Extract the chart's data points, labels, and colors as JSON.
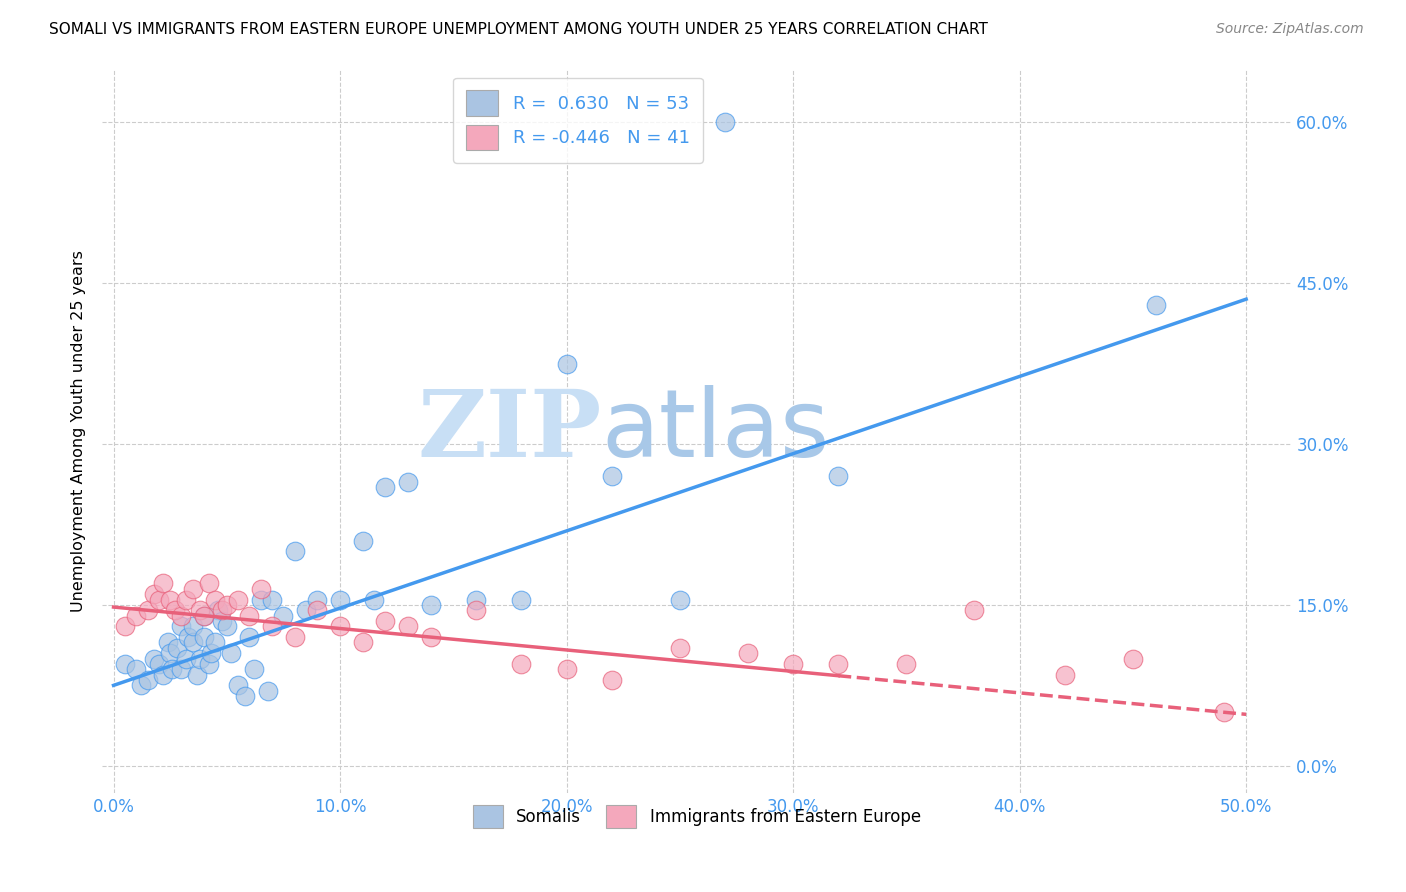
{
  "title": "SOMALI VS IMMIGRANTS FROM EASTERN EUROPE UNEMPLOYMENT AMONG YOUTH UNDER 25 YEARS CORRELATION CHART",
  "source": "Source: ZipAtlas.com",
  "ylabel": "Unemployment Among Youth under 25 years",
  "xlabel_ticks": [
    "0.0%",
    "10.0%",
    "20.0%",
    "30.0%",
    "40.0%",
    "50.0%"
  ],
  "ylabel_ticks": [
    "0.0%",
    "15.0%",
    "30.0%",
    "45.0%",
    "60.0%"
  ],
  "xlim": [
    -0.005,
    0.52
  ],
  "ylim": [
    -0.025,
    0.65
  ],
  "somali_R": 0.63,
  "somali_N": 53,
  "eastern_R": -0.446,
  "eastern_N": 41,
  "somali_color": "#aac4e2",
  "eastern_color": "#f4a8bc",
  "line_somali_color": "#4499ee",
  "line_eastern_color": "#e8607a",
  "watermark_zip": "ZIP",
  "watermark_atlas": "atlas",
  "watermark_color_zip": "#c8dff5",
  "watermark_color_atlas": "#a8c8e8",
  "legend_label_somali": "Somalis",
  "legend_label_eastern": "Immigrants from Eastern Europe",
  "somali_x": [
    0.005,
    0.01,
    0.012,
    0.015,
    0.018,
    0.02,
    0.022,
    0.024,
    0.025,
    0.026,
    0.028,
    0.03,
    0.03,
    0.032,
    0.033,
    0.035,
    0.035,
    0.037,
    0.038,
    0.04,
    0.04,
    0.042,
    0.043,
    0.045,
    0.046,
    0.048,
    0.05,
    0.052,
    0.055,
    0.058,
    0.06,
    0.062,
    0.065,
    0.068,
    0.07,
    0.075,
    0.08,
    0.085,
    0.09,
    0.1,
    0.11,
    0.115,
    0.12,
    0.13,
    0.14,
    0.16,
    0.18,
    0.2,
    0.22,
    0.25,
    0.27,
    0.32,
    0.46
  ],
  "somali_y": [
    0.095,
    0.09,
    0.075,
    0.08,
    0.1,
    0.095,
    0.085,
    0.115,
    0.105,
    0.09,
    0.11,
    0.09,
    0.13,
    0.1,
    0.12,
    0.115,
    0.13,
    0.085,
    0.1,
    0.12,
    0.14,
    0.095,
    0.105,
    0.115,
    0.145,
    0.135,
    0.13,
    0.105,
    0.075,
    0.065,
    0.12,
    0.09,
    0.155,
    0.07,
    0.155,
    0.14,
    0.2,
    0.145,
    0.155,
    0.155,
    0.21,
    0.155,
    0.26,
    0.265,
    0.15,
    0.155,
    0.155,
    0.375,
    0.27,
    0.155,
    0.6,
    0.27,
    0.43
  ],
  "eastern_x": [
    0.005,
    0.01,
    0.015,
    0.018,
    0.02,
    0.022,
    0.025,
    0.027,
    0.03,
    0.032,
    0.035,
    0.038,
    0.04,
    0.042,
    0.045,
    0.048,
    0.05,
    0.055,
    0.06,
    0.065,
    0.07,
    0.08,
    0.09,
    0.1,
    0.11,
    0.12,
    0.13,
    0.14,
    0.16,
    0.18,
    0.2,
    0.22,
    0.25,
    0.28,
    0.3,
    0.32,
    0.35,
    0.38,
    0.42,
    0.45,
    0.49
  ],
  "eastern_y": [
    0.13,
    0.14,
    0.145,
    0.16,
    0.155,
    0.17,
    0.155,
    0.145,
    0.14,
    0.155,
    0.165,
    0.145,
    0.14,
    0.17,
    0.155,
    0.145,
    0.15,
    0.155,
    0.14,
    0.165,
    0.13,
    0.12,
    0.145,
    0.13,
    0.115,
    0.135,
    0.13,
    0.12,
    0.145,
    0.095,
    0.09,
    0.08,
    0.11,
    0.105,
    0.095,
    0.095,
    0.095,
    0.145,
    0.085,
    0.1,
    0.05
  ],
  "line_somali_start_x": 0.0,
  "line_somali_start_y": 0.075,
  "line_somali_end_x": 0.5,
  "line_somali_end_y": 0.435,
  "line_eastern_solid_end_x": 0.32,
  "line_eastern_start_x": 0.0,
  "line_eastern_start_y": 0.148,
  "line_eastern_end_x": 0.5,
  "line_eastern_end_y": 0.048
}
